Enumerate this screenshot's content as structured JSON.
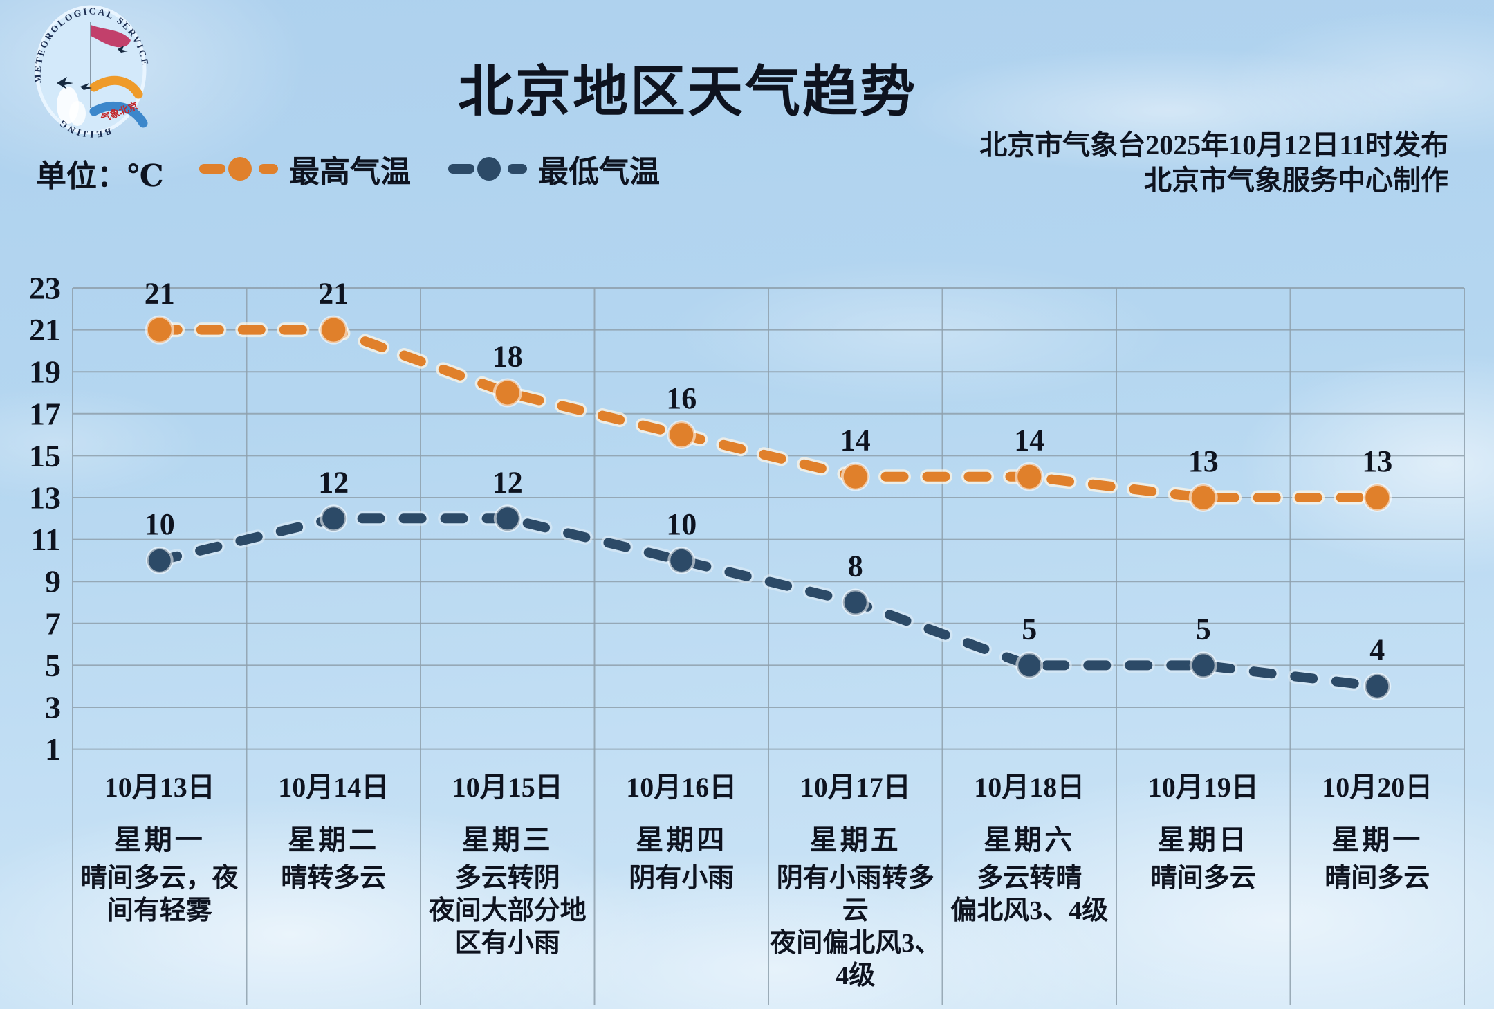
{
  "header": {
    "title": "北京地区天气趋势",
    "unit_label": "单位：℃",
    "source_line1": "北京市气象台2025年10月12日11时发布",
    "source_line2": "北京市气象服务中心制作",
    "logo": {
      "arc_top_text": "METEOROLOGICAL SERVICE",
      "arc_bottom_text": "BEIJING",
      "arc_cn_text": "气象北京"
    }
  },
  "legend": {
    "items": [
      {
        "label": "最高气温",
        "color": "#e0802b"
      },
      {
        "label": "最低气温",
        "color": "#2c4a67"
      }
    ]
  },
  "chart_data": {
    "type": "line",
    "title": "北京地区天气趋势",
    "unit": "℃",
    "categories": [
      "10月13日",
      "10月14日",
      "10月15日",
      "10月16日",
      "10月17日",
      "10月18日",
      "10月19日",
      "10月20日"
    ],
    "weekdays": [
      "星期一",
      "星期二",
      "星期三",
      "星期四",
      "星期五",
      "星期六",
      "星期日",
      "星期一"
    ],
    "weather": [
      "晴间多云，夜\n间有轻雾",
      "晴转多云",
      "多云转阴\n夜间大部分地\n区有小雨",
      "阴有小雨",
      "阴有小雨转多\n云\n夜间偏北风3、\n4级",
      "多云转晴\n偏北风3、4级",
      "晴间多云",
      "晴间多云"
    ],
    "series": [
      {
        "name": "最高气温",
        "color": "#e0802b",
        "halo": "rgba(253,244,228,0.75)",
        "values": [
          21,
          21,
          18,
          16,
          14,
          14,
          13,
          13
        ]
      },
      {
        "name": "最低气温",
        "color": "#2c4a67",
        "halo": "rgba(226,237,246,0.55)",
        "values": [
          10,
          12,
          12,
          10,
          8,
          5,
          5,
          4
        ]
      }
    ],
    "ylim": [
      1,
      23
    ],
    "ytick_step": 2,
    "grid": true,
    "legend_position": "top-left"
  },
  "colors": {
    "grid": "#8fa0ac",
    "text": "#0e131f",
    "logo_text": "#1b2c50",
    "logo_red": "#c3272b",
    "logo_ribbon": "#c2406b",
    "logo_orange": "#ef9b2a",
    "logo_blue": "#3c87cb",
    "logo_bird": "#16293f"
  }
}
